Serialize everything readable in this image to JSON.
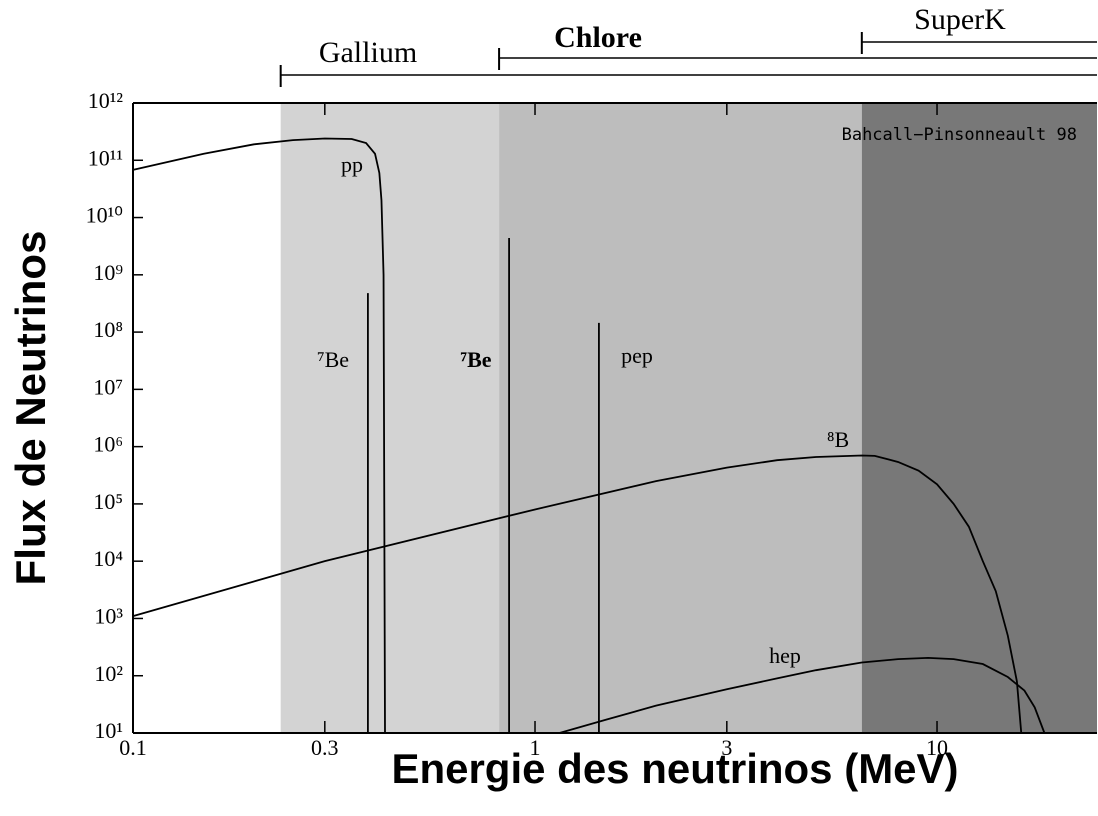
{
  "chart_data": {
    "type": "line",
    "xlabel": "Energie des neutrinos (MeV)",
    "ylabel": "Flux de Neutrinos",
    "annotation": "Bahcall−Pinsonneault 98",
    "xscale": "log",
    "yscale": "log",
    "xlim": [
      0.1,
      25
    ],
    "ylim": [
      10,
      1000000000000
    ],
    "xticks": [
      0.1,
      0.3,
      1,
      3,
      10
    ],
    "yticks": [
      {
        "value": 10,
        "label": "10¹"
      },
      {
        "value": 100,
        "label": "10²"
      },
      {
        "value": 1000,
        "label": "10³"
      },
      {
        "value": 10000,
        "label": "10⁴"
      },
      {
        "value": 100000,
        "label": "10⁵"
      },
      {
        "value": 1000000,
        "label": "10⁶"
      },
      {
        "value": 10000000,
        "label": "10⁷"
      },
      {
        "value": 100000000,
        "label": "10⁸"
      },
      {
        "value": 1000000000,
        "label": "10⁹"
      },
      {
        "value": 10000000000,
        "label": "10¹⁰"
      },
      {
        "value": 100000000000,
        "label": "10¹¹"
      },
      {
        "value": 1000000000000,
        "label": "10¹²"
      }
    ],
    "regions": [
      {
        "name": "Gallium",
        "start": 0.233,
        "color": "#d3d3d3"
      },
      {
        "name": "Chlore",
        "start": 0.814,
        "color": "#bdbdbd"
      },
      {
        "name": "SuperK",
        "start": 6.5,
        "color": "#787878"
      }
    ],
    "series": [
      {
        "name": "pp",
        "color": "#000000",
        "x": [
          0.1,
          0.15,
          0.2,
          0.25,
          0.3,
          0.35,
          0.38,
          0.4,
          0.41,
          0.415,
          0.42,
          0.4235
        ],
        "values": [
          68000000000,
          130000000000,
          190000000000,
          225000000000,
          240000000000,
          235000000000,
          200000000000,
          130000000000,
          60000000000,
          20000000000,
          1000000000,
          10
        ]
      },
      {
        "name": "⁸B",
        "color": "#000000",
        "x": [
          0.1,
          0.3,
          1,
          2,
          3,
          4,
          5,
          6.5,
          7,
          8,
          9,
          10,
          11,
          12,
          13,
          14,
          15,
          15.8,
          16.2
        ],
        "values": [
          1100,
          10000,
          80000,
          250000,
          430000,
          580000,
          660000,
          700000,
          690000,
          540000,
          380000,
          220000,
          100000,
          40000,
          10000,
          3000,
          500,
          80,
          10
        ]
      },
      {
        "name": "hep",
        "color": "#000000",
        "x": [
          1.15,
          1.5,
          2,
          3,
          4,
          5,
          6.5,
          8,
          9.5,
          11,
          13,
          15,
          16.5,
          17.5,
          18.5
        ],
        "values": [
          10,
          17,
          30,
          58,
          90,
          125,
          170,
          195,
          205,
          195,
          160,
          95,
          55,
          28,
          10
        ]
      }
    ],
    "lines": [
      {
        "name": "⁷Be",
        "x": 0.384,
        "value": 480000000
      },
      {
        "name": "⁷Be",
        "x": 0.862,
        "value": 4400000000
      },
      {
        "name": "pep",
        "x": 1.442,
        "value": 145000000
      }
    ]
  }
}
